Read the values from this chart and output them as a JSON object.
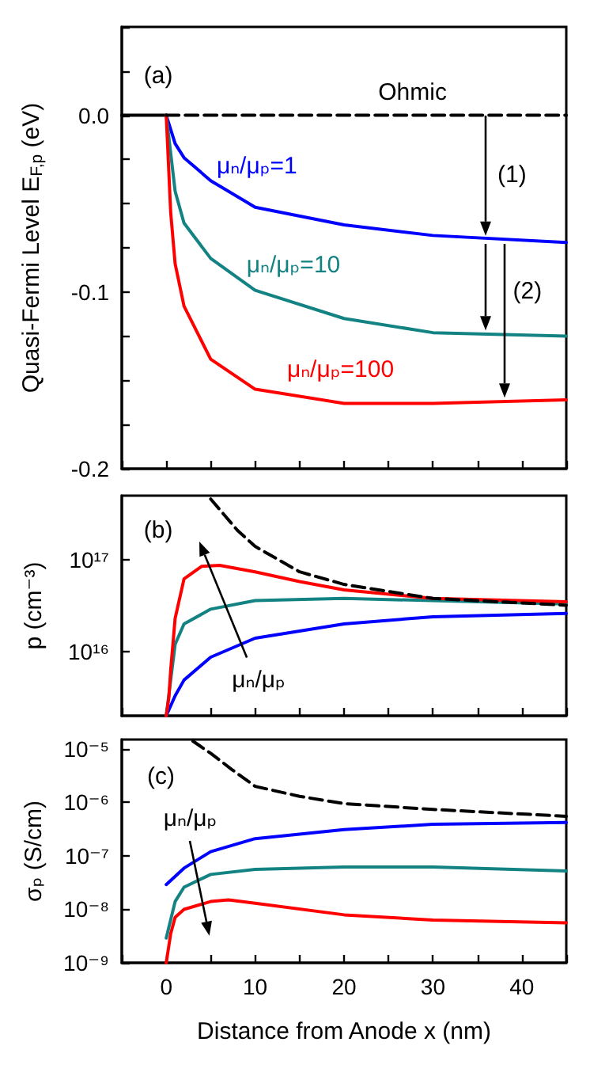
{
  "chart_data": [
    {
      "type": "line",
      "ylabel": "Quasi-Fermi Level E$_{F,p}$ (eV)",
      "xlim": [
        -5,
        45
      ],
      "xticks": [
        0,
        {
          "value": 5,
          "label": null
        },
        10,
        {
          "value": 15,
          "label": null
        },
        20,
        {
          "value": 25,
          "label": null
        },
        30,
        {
          "value": 35,
          "label": null
        },
        40
      ],
      "ylim": [
        -0.2,
        0.05
      ],
      "yticks": [
        -0.2,
        {
          "value": -0.175,
          "label": null
        },
        {
          "value": -0.15,
          "label": null
        },
        {
          "value": -0.125,
          "label": null
        },
        -0.1,
        {
          "value": -0.075,
          "label": null
        },
        {
          "value": -0.05,
          "label": null
        },
        {
          "value": -0.025,
          "label": null
        },
        {
          "value": 0,
          "label": "0.0"
        },
        {
          "value": 0.025,
          "label": null
        }
      ],
      "tick_labels": "y",
      "grid": false,
      "legend": false,
      "marker": "none",
      "line_style": "solid",
      "annotations": [
        "(a)",
        "(1)",
        {
          "text": "(2)",
          "x": 36,
          "y": -0.122
        }
      ],
      "series": [
        {
          "color": "#000000",
          "x": [
            -5,
            0
          ],
          "values": [
            0,
            0
          ]
        },
        {
          "name": "Ohmic",
          "color": "#000000",
          "line_style": "dashed",
          "x": [
            0,
            10,
            20,
            30,
            45
          ],
          "values": [
            0,
            0,
            0,
            0,
            0
          ]
        },
        {
          "name": "μₙ/μₚ=1",
          "color": "#0000ff",
          "x": [
            0,
            1,
            2,
            5,
            10,
            20,
            30,
            45
          ],
          "values": [
            0,
            -0.016,
            -0.024,
            -0.037,
            -0.052,
            -0.062,
            -0.068,
            -0.072
          ]
        },
        {
          "name": "μₙ/μₚ=10",
          "color": "#128282",
          "x": [
            0,
            1,
            2,
            5,
            10,
            20,
            30,
            45
          ],
          "values": [
            0,
            -0.043,
            -0.061,
            -0.081,
            -0.099,
            -0.115,
            -0.123,
            -0.125
          ]
        },
        {
          "name": "μₙ/μₚ=100",
          "color": "#ff0000",
          "x": [
            0,
            0.5,
            1,
            2,
            5,
            10,
            20,
            30,
            45
          ],
          "values": [
            0,
            -0.055,
            -0.084,
            -0.108,
            -0.138,
            -0.155,
            -0.163,
            -0.163,
            -0.161
          ]
        }
      ]
    },
    {
      "type": "line",
      "ylabel": "p (cm⁻³)",
      "xlim": [
        -5,
        45
      ],
      "xticks": [
        0,
        {
          "value": 5,
          "label": null
        },
        10,
        {
          "value": 15,
          "label": null
        },
        20,
        {
          "value": 25,
          "label": null
        },
        30,
        {
          "value": 35,
          "label": null
        },
        40
      ],
      "ylim": [
        2000000000000000.0,
        5e+17
      ],
      "log": true,
      "yticks": [
        {
          "value": 1e+16,
          "label": "10¹⁶"
        },
        {
          "value": 1e+17,
          "label": "10¹⁷"
        }
      ],
      "tick_labels": "y",
      "grid": false,
      "legend": false,
      "marker": "none",
      "line_style": "solid",
      "annotations": [
        "(b)",
        "μₙ/μₚ"
      ],
      "series": [
        {
          "color": "#000000",
          "line_style": "dashed",
          "x": [
            5,
            8,
            10,
            15,
            20,
            30,
            45
          ],
          "values": [
            4.6e+17,
            2.1e+17,
            1.4e+17,
            7.4e+16,
            5.4e+16,
            3.8e+16,
            3.2e+16
          ]
        },
        {
          "color": "#0000ff",
          "x": [
            0,
            1,
            2,
            5,
            10,
            20,
            30,
            45
          ],
          "values": [
            2000000000000000.0,
            3300000000000000.0,
            4900000000000000.0,
            8700000000000000.0,
            1.4e+16,
            2e+16,
            2.4e+16,
            2.6e+16
          ]
        },
        {
          "color": "#128282",
          "x": [
            0,
            1,
            2,
            5,
            10,
            20,
            45
          ],
          "values": [
            2000000000000000.0,
            1.2e+16,
            2e+16,
            2.9e+16,
            3.6e+16,
            3.8e+16,
            3.3e+16
          ]
        },
        {
          "color": "#ff0000",
          "x": [
            0,
            0.3,
            0.5,
            1,
            2,
            4,
            6,
            10,
            15,
            20,
            30,
            45
          ],
          "values": [
            2000000000000000.0,
            3200000000000000.0,
            6300000000000000.0,
            2.3e+16,
            6.2e+16,
            8.5e+16,
            8.7e+16,
            7.4e+16,
            5.8e+16,
            4.7e+16,
            3.8e+16,
            3.5e+16
          ]
        }
      ]
    },
    {
      "type": "line",
      "xlabel": "Distance from Anode x (nm)",
      "ylabel": "σₚ (S/cm)",
      "xlim": [
        -5,
        45
      ],
      "xticks": [
        0,
        {
          "value": 5,
          "label": null
        },
        10,
        {
          "value": 15,
          "label": null
        },
        20,
        {
          "value": 25,
          "label": null
        },
        30,
        {
          "value": 35,
          "label": null
        },
        40
      ],
      "ylim": [
        1e-09,
        1.5e-05
      ],
      "log": true,
      "yticks": [
        {
          "value": 1e-09,
          "label": "10⁻⁹"
        },
        {
          "value": 1e-08,
          "label": "10⁻⁸"
        },
        {
          "value": 1e-07,
          "label": "10⁻⁷"
        },
        {
          "value": 1e-06,
          "label": "10⁻⁶"
        },
        {
          "value": 1e-05,
          "label": "10⁻⁵"
        }
      ],
      "grid": false,
      "legend": false,
      "marker": "none",
      "line_style": "solid",
      "annotations": [
        "(c)",
        "μₙ/μₚ"
      ],
      "series": [
        {
          "color": "#000000",
          "line_style": "dashed",
          "x": [
            3,
            5,
            7.4,
            10,
            15,
            20,
            30,
            45
          ],
          "values": [
            1.4e-05,
            8.3e-06,
            4.1e-06,
            2e-06,
            1.3e-06,
            9.5e-07,
            7.4e-07,
            5.5e-07
          ]
        },
        {
          "color": "#0000ff",
          "x": [
            0,
            2,
            5,
            10,
            20,
            30,
            45
          ],
          "values": [
            2.9e-08,
            5.9e-08,
            1.2e-07,
            2.1e-07,
            3.1e-07,
            3.9e-07,
            4.2e-07
          ]
        },
        {
          "color": "#128282",
          "x": [
            0,
            1,
            2,
            5,
            10,
            20,
            30,
            45
          ],
          "values": [
            2.9e-09,
            1.4e-08,
            2.6e-08,
            4.5e-08,
            5.6e-08,
            6.2e-08,
            6.2e-08,
            5.2e-08
          ]
        },
        {
          "color": "#ff0000",
          "x": [
            0,
            0.5,
            1,
            2,
            5,
            7,
            10,
            20,
            30,
            45
          ],
          "values": [
            1e-09,
            3.5e-09,
            7.1e-09,
            1e-08,
            1.4e-08,
            1.5e-08,
            1.3e-08,
            7.9e-09,
            6.3e-09,
            5.6e-09
          ]
        }
      ]
    }
  ]
}
